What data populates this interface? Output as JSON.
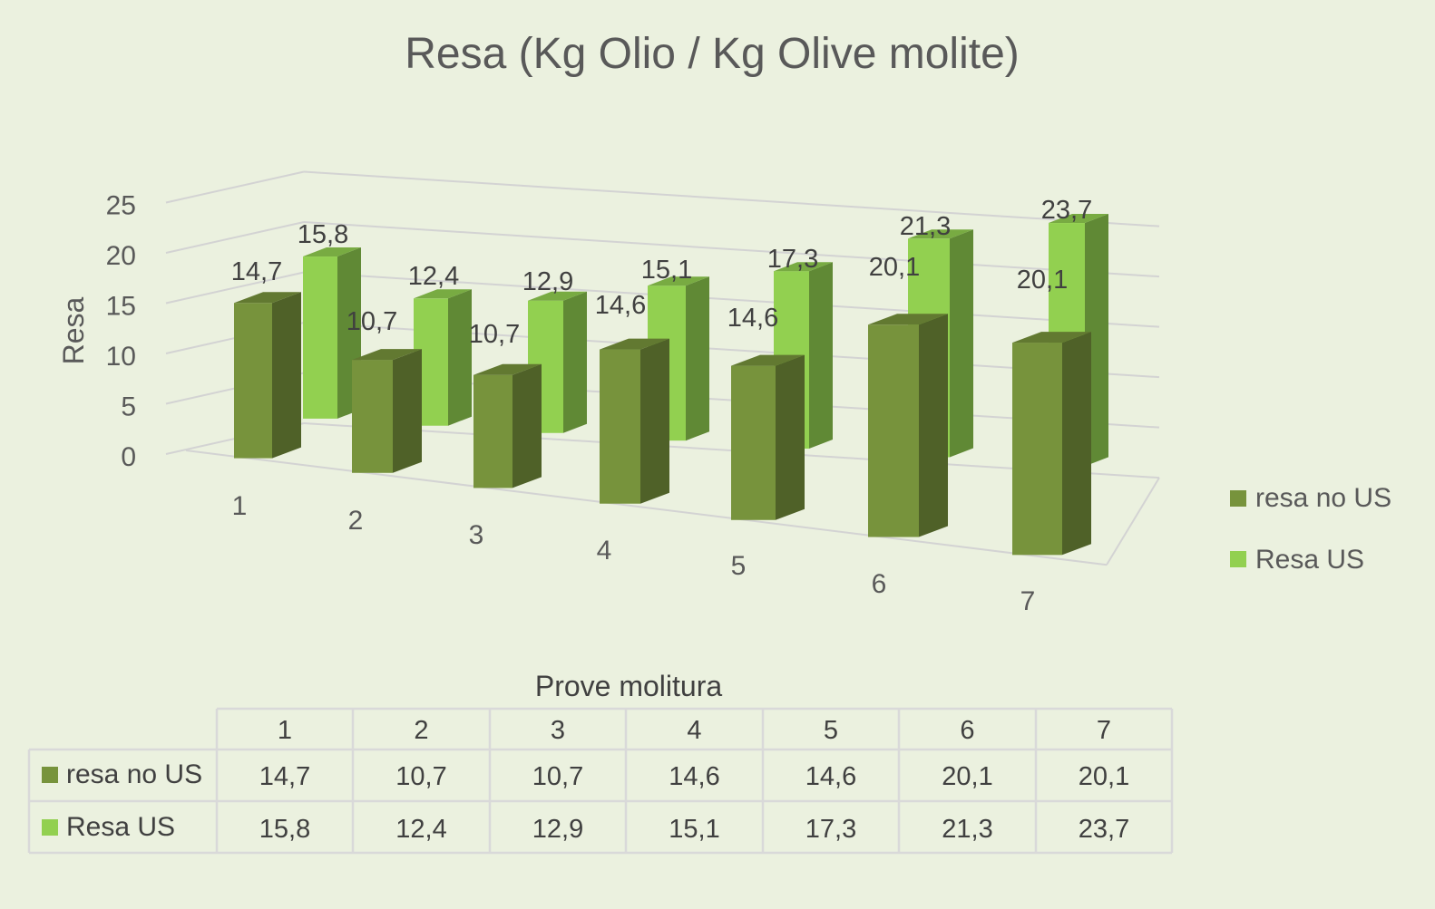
{
  "chart_data": {
    "type": "bar",
    "style": "3d-clustered-column",
    "title": "Resa (Kg Olio / Kg Olive molite)",
    "xlabel": "Prove molitura",
    "ylabel": "Resa",
    "ylim": [
      0,
      25
    ],
    "yticks": [
      "0",
      "5",
      "10",
      "15",
      "20",
      "25"
    ],
    "categories": [
      "1",
      "2",
      "3",
      "4",
      "5",
      "6",
      "7"
    ],
    "series": [
      {
        "name": "resa no US",
        "color": "#77933c",
        "values": [
          14.7,
          10.7,
          10.7,
          14.6,
          14.6,
          20.1,
          20.1
        ],
        "labels": [
          "14,7",
          "10,7",
          "10,7",
          "14,6",
          "14,6",
          "20,1",
          "20,1"
        ]
      },
      {
        "name": "Resa US",
        "color": "#92d050",
        "values": [
          15.8,
          12.4,
          12.9,
          15.1,
          17.3,
          21.3,
          23.7
        ],
        "labels": [
          "15,8",
          "12,4",
          "12,9",
          "15,1",
          "17,3",
          "21,3",
          "23,7"
        ]
      }
    ],
    "grid": true,
    "legend": "right",
    "data_table": true
  }
}
